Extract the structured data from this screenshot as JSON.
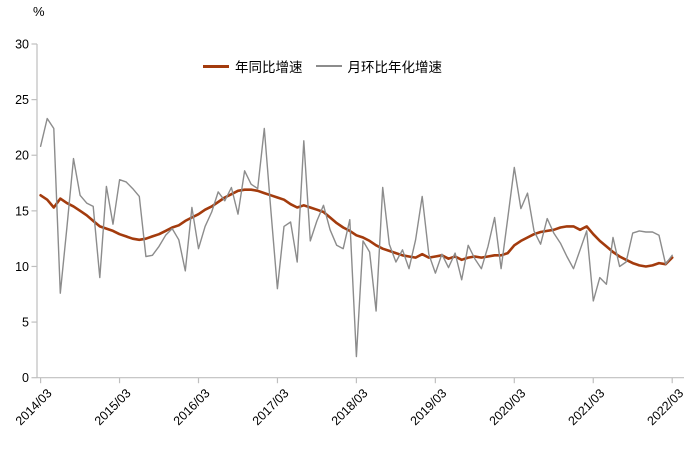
{
  "chart": {
    "unit_label": "%"
  },
  "legend": {
    "items": [
      {
        "label": "年同比增速",
        "color": "#A33B0D",
        "swatch_height": 3
      },
      {
        "label": "月环比年化增速",
        "color": "#8C8C8C",
        "swatch_height": 2
      }
    ]
  },
  "chart_data": {
    "type": "line",
    "title": "",
    "ylabel": "%",
    "xlabel": "",
    "ylim": [
      0,
      30
    ],
    "yticks": [
      0,
      5,
      10,
      15,
      20,
      25,
      30
    ],
    "x_tick_labels": [
      "2014/03",
      "2015/03",
      "2016/03",
      "2017/03",
      "2018/03",
      "2019/03",
      "2020/03",
      "2021/03",
      "2022/03"
    ],
    "x_frequency": "monthly",
    "points_per_tick_interval": 12,
    "grid": false,
    "legend_position": "top-center",
    "axis_color": "#BFBFBF",
    "text_color": "#000000",
    "background": "#FFFFFF",
    "series": [
      {
        "name": "年同比增速",
        "color": "#A33B0D",
        "line_width": 2.6,
        "values": [
          16.4,
          16.0,
          15.3,
          16.1,
          15.7,
          15.4,
          15.0,
          14.6,
          14.1,
          13.6,
          13.4,
          13.2,
          12.9,
          12.7,
          12.5,
          12.4,
          12.5,
          12.7,
          12.9,
          13.2,
          13.5,
          13.7,
          14.1,
          14.4,
          14.7,
          15.1,
          15.4,
          15.8,
          16.2,
          16.5,
          16.8,
          16.9,
          16.9,
          16.8,
          16.6,
          16.4,
          16.2,
          16.0,
          15.6,
          15.3,
          15.5,
          15.3,
          15.1,
          14.9,
          14.4,
          13.9,
          13.5,
          13.2,
          12.8,
          12.6,
          12.3,
          11.9,
          11.6,
          11.4,
          11.2,
          11.0,
          10.9,
          10.8,
          11.1,
          10.8,
          10.9,
          11.0,
          10.7,
          10.9,
          10.6,
          10.8,
          10.9,
          10.8,
          10.9,
          11.0,
          11.0,
          11.2,
          11.9,
          12.3,
          12.6,
          12.9,
          13.1,
          13.2,
          13.3,
          13.5,
          13.6,
          13.6,
          13.3,
          13.6,
          12.9,
          12.3,
          11.8,
          11.3,
          10.9,
          10.6,
          10.3,
          10.1,
          10.0,
          10.1,
          10.3,
          10.2,
          10.8
        ]
      },
      {
        "name": "月环比年化增速",
        "color": "#8C8C8C",
        "line_width": 1.4,
        "values": [
          20.8,
          23.3,
          22.4,
          7.6,
          13.5,
          19.7,
          16.4,
          15.7,
          15.4,
          9.0,
          17.2,
          13.8,
          17.8,
          17.6,
          17.0,
          16.3,
          10.9,
          11.0,
          11.8,
          12.8,
          13.4,
          12.4,
          9.6,
          15.3,
          11.6,
          13.6,
          14.9,
          16.7,
          15.9,
          17.1,
          14.7,
          18.6,
          17.4,
          17.0,
          22.4,
          15.0,
          8.0,
          13.6,
          14.0,
          10.4,
          21.3,
          12.3,
          14.1,
          15.5,
          13.3,
          11.9,
          11.6,
          14.2,
          1.9,
          12.3,
          11.3,
          6.0,
          17.1,
          12.0,
          10.4,
          11.5,
          9.8,
          12.4,
          16.3,
          11.1,
          9.4,
          11.1,
          9.9,
          11.2,
          8.8,
          11.9,
          10.7,
          9.8,
          11.8,
          14.4,
          9.8,
          14.3,
          18.9,
          15.2,
          16.6,
          13.2,
          12.0,
          14.3,
          13.0,
          12.1,
          10.9,
          9.8,
          11.5,
          13.2,
          6.9,
          9.0,
          8.4,
          12.6,
          10.0,
          10.4,
          13.0,
          13.2,
          13.1,
          13.1,
          12.8,
          10.2,
          11.0
        ]
      }
    ]
  }
}
